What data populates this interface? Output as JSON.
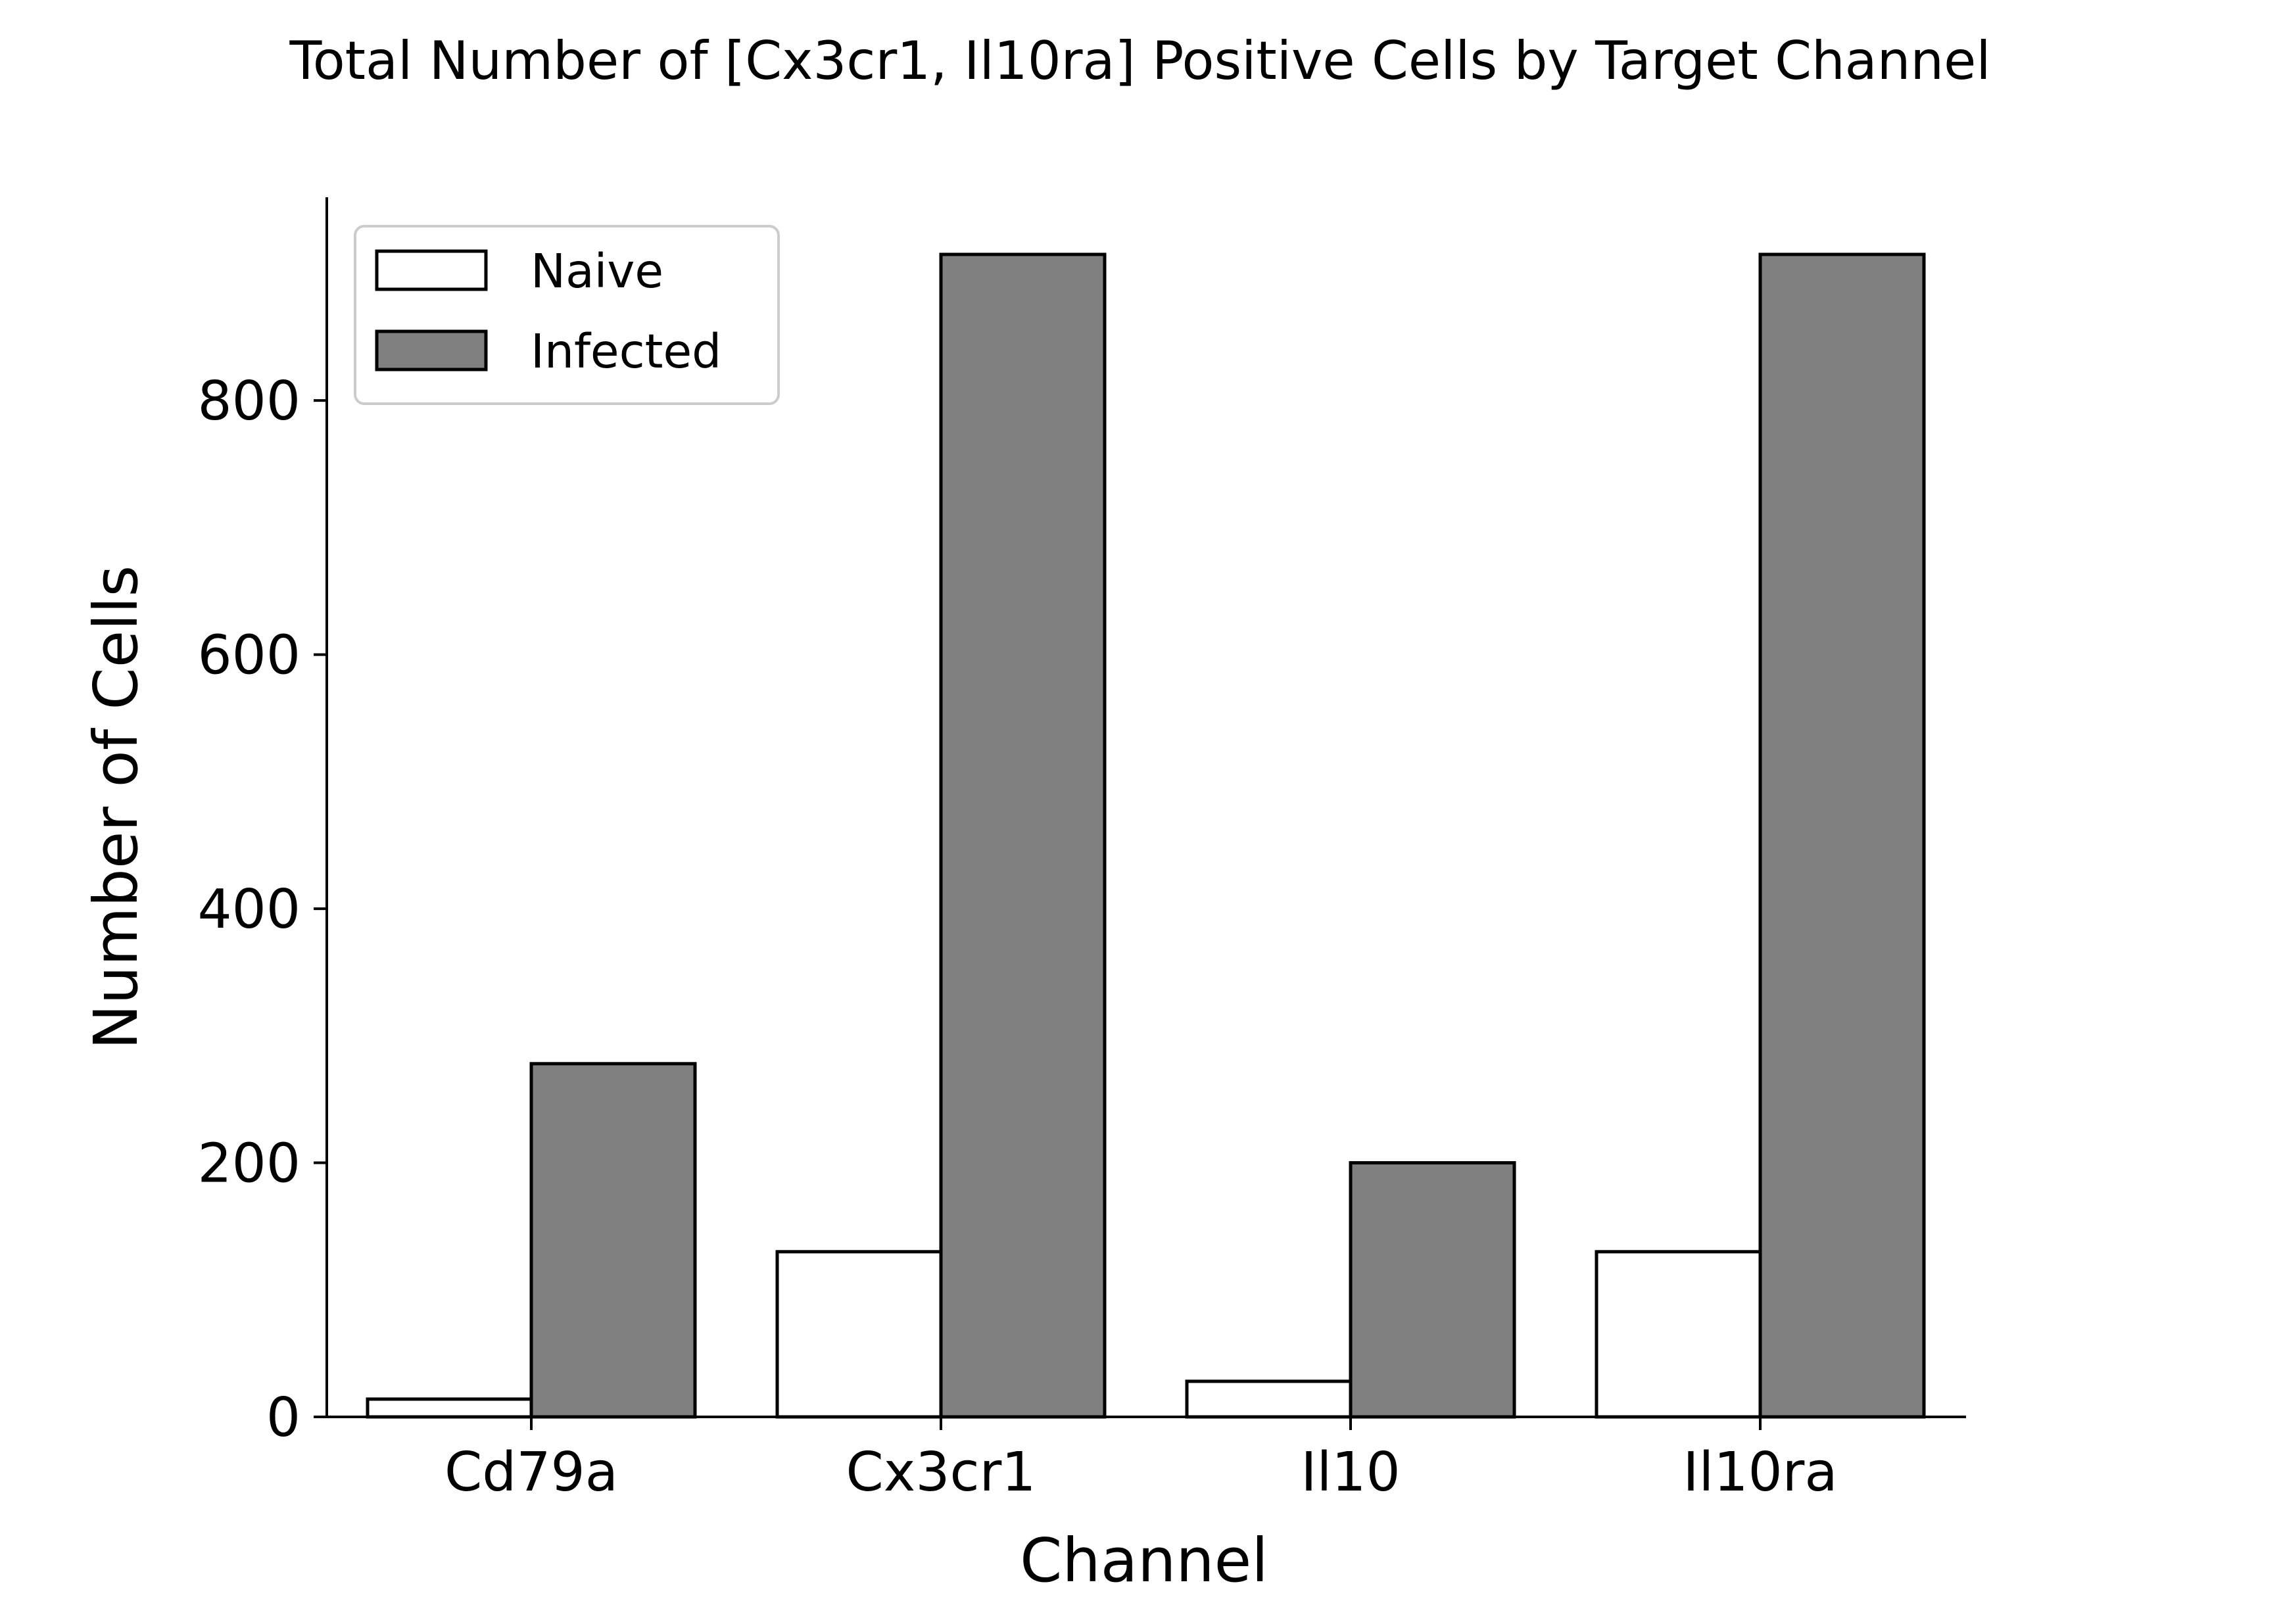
{
  "chart_data": {
    "type": "bar",
    "title": "Total Number of [Cx3cr1, Il10ra] Positive Cells by Target Channel",
    "xlabel": "Channel",
    "ylabel": "Number of Cells",
    "categories": [
      "Cd79a",
      "Cx3cr1",
      "Il10",
      "Il10ra"
    ],
    "series": [
      {
        "name": "Naive",
        "values": [
          14,
          130,
          28,
          130
        ],
        "color": "#ffffff"
      },
      {
        "name": "Infected",
        "values": [
          278,
          915,
          200,
          915
        ],
        "color": "#808080"
      }
    ],
    "ylim": [
      0,
      960
    ],
    "yticks": [
      0,
      200,
      400,
      600,
      800
    ],
    "grid": false,
    "legend_position": "top-left",
    "edge_color": "#000000"
  }
}
